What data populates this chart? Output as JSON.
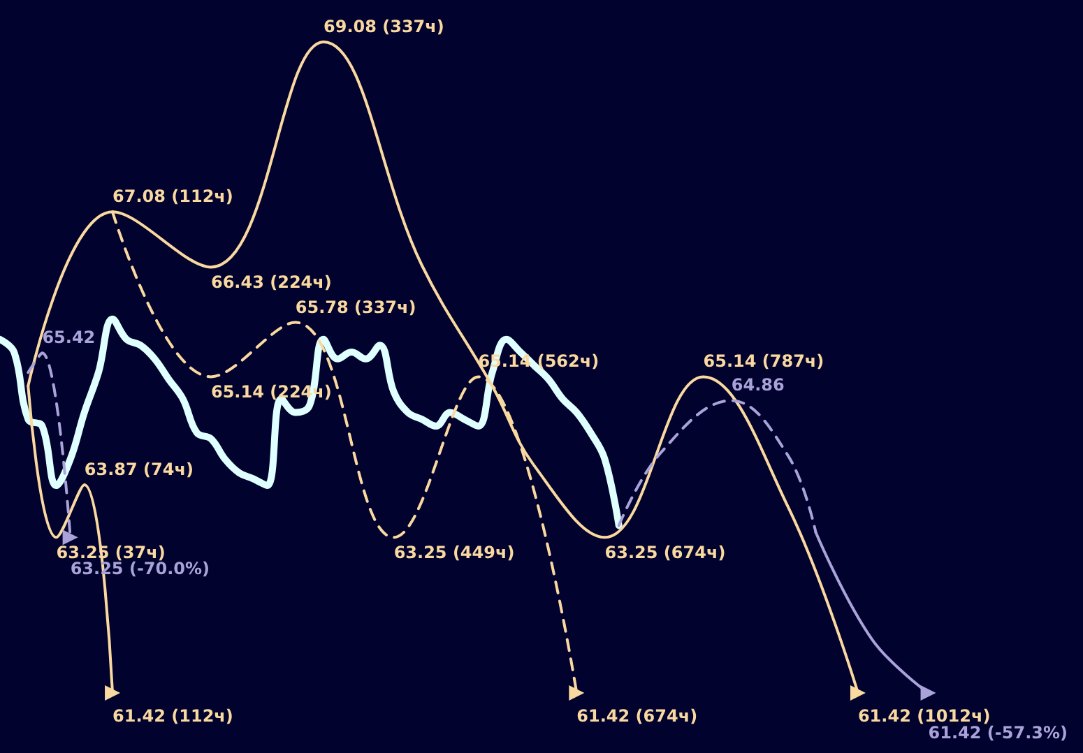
{
  "chart_data": {
    "type": "line",
    "tick_labels": false,
    "categories": [
      null,
      null,
      null,
      null,
      null,
      null,
      null,
      null,
      null,
      null,
      null,
      null,
      null,
      null,
      null,
      null,
      null,
      null,
      null,
      null,
      null,
      null,
      null,
      null,
      null,
      null,
      null,
      null,
      null,
      null,
      null,
      null,
      null,
      null,
      null,
      null,
      null,
      null,
      null,
      null,
      null,
      null,
      null,
      null,
      null,
      null,
      null,
      null,
      null,
      null,
      null,
      null,
      null,
      null,
      null,
      null,
      null,
      null,
      null,
      null,
      null,
      null,
      null,
      null,
      null,
      null,
      null,
      null,
      null,
      null,
      null,
      null,
      null,
      null,
      null,
      null,
      null,
      null
    ],
    "series": [
      {
        "color": "#e0ffff",
        "line_style": "solid",
        "values": [
          65.58,
          65.43,
          64.64,
          64.56,
          63.86,
          64.17,
          64.72,
          65.19,
          65.82,
          65.58,
          65.51,
          65.35,
          65.11,
          64.88,
          64.48,
          64.41,
          64.17,
          64.01,
          63.94,
          63.86,
          64.88,
          64.72,
          64.8,
          65.58,
          65.35,
          65.43,
          65.35,
          65.51,
          64.96,
          64.72,
          64.64,
          64.56,
          64.72,
          64.64,
          64.56,
          65.19,
          65.58,
          65.43,
          65.27,
          65.11,
          64.88,
          64.72,
          64.48,
          64.17,
          63.39,
          null,
          null,
          null,
          null,
          null,
          null,
          null,
          null,
          null,
          null,
          null,
          null,
          null,
          null,
          null,
          null,
          null,
          null,
          null,
          null,
          null,
          null,
          null,
          null,
          null,
          null,
          null,
          null,
          null,
          null,
          null,
          null,
          null
        ]
      },
      {
        "color": "#f9d9a0",
        "line_style": "solid",
        "values": [
          null,
          null,
          65.03,
          null,
          null,
          null,
          null,
          null,
          67.08,
          null,
          null,
          null,
          null,
          null,
          null,
          66.43,
          null,
          null,
          null,
          null,
          null,
          null,
          null,
          69.08,
          null,
          null,
          null,
          null,
          null,
          null,
          66.45,
          null,
          null,
          null,
          null,
          65.03,
          null,
          null,
          64.09,
          null,
          null,
          null,
          null,
          63.25,
          null,
          null,
          null,
          null,
          null,
          null,
          65.14,
          null,
          null,
          null,
          null,
          null,
          63.62,
          null,
          null,
          null,
          null,
          61.42,
          null,
          null,
          null,
          null,
          null,
          null,
          null,
          null,
          null,
          null,
          null,
          null,
          null,
          null,
          null,
          null
        ],
        "value_labels": [
          null,
          null,
          null,
          null,
          null,
          null,
          null,
          null,
          "67.08 (112ч)",
          null,
          null,
          null,
          null,
          null,
          null,
          "66.43 (224ч)",
          null,
          null,
          null,
          null,
          null,
          null,
          null,
          "69.08 (337ч)",
          null,
          null,
          null,
          null,
          null,
          null,
          null,
          null,
          null,
          null,
          null,
          null,
          null,
          null,
          null,
          null,
          null,
          null,
          null,
          "63.25 (674ч)",
          null,
          null,
          null,
          null,
          null,
          null,
          "65.14 (787ч)",
          null,
          null,
          null,
          null,
          null,
          null,
          null,
          null,
          null,
          null,
          "61.42 (1012ч)",
          null,
          null,
          null,
          null,
          null,
          null,
          null,
          null,
          null,
          null,
          null,
          null,
          null,
          null,
          null,
          null
        ]
      },
      {
        "color": "#f9d9a0",
        "line_style": "solid",
        "values": [
          null,
          null,
          65.03,
          null,
          63.25,
          null,
          63.87,
          null,
          61.42,
          null,
          null,
          null,
          null,
          null,
          null,
          null,
          null,
          null,
          null,
          null,
          null,
          null,
          null,
          null,
          null,
          null,
          null,
          null,
          null,
          null,
          null,
          null,
          null,
          null,
          null,
          null,
          null,
          null,
          null,
          null,
          null,
          null,
          null,
          null,
          null,
          null,
          null,
          null,
          null,
          null,
          null,
          null,
          null,
          null,
          null,
          null,
          null,
          null,
          null,
          null,
          null,
          null,
          null,
          null,
          null,
          null,
          null,
          null,
          null,
          null,
          null,
          null,
          null,
          null,
          null,
          null,
          null,
          null
        ],
        "value_labels": [
          null,
          null,
          null,
          null,
          "63.25 (37ч)",
          null,
          "63.87 (74ч)",
          null,
          "61.42 (112ч)",
          null,
          null,
          null,
          null,
          null,
          null,
          null,
          null,
          null,
          null,
          null,
          null,
          null,
          null,
          null,
          null,
          null,
          null,
          null,
          null,
          null,
          null,
          null,
          null,
          null,
          null,
          null,
          null,
          null,
          null,
          null,
          null,
          null,
          null,
          null,
          null,
          null,
          null,
          null,
          null,
          null,
          null,
          null,
          null,
          null,
          null,
          null,
          null,
          null,
          null,
          null,
          null,
          null,
          null,
          null,
          null,
          null,
          null,
          null,
          null,
          null,
          null,
          null,
          null,
          null,
          null,
          null,
          null,
          null
        ]
      },
      {
        "color": "#f9d9a0",
        "line_style": "dashed",
        "values": [
          null,
          null,
          null,
          null,
          null,
          null,
          null,
          null,
          67.08,
          null,
          null,
          null,
          null,
          null,
          null,
          65.14,
          null,
          null,
          null,
          null,
          null,
          65.78,
          null,
          null,
          null,
          null,
          null,
          null,
          63.25,
          null,
          null,
          null,
          null,
          null,
          65.14,
          null,
          null,
          null,
          null,
          null,
          null,
          61.42,
          null,
          null,
          null,
          null,
          null,
          null,
          null,
          null,
          null,
          null,
          null,
          null,
          null,
          null,
          null,
          null,
          null,
          null,
          null,
          null,
          null,
          null,
          null,
          null,
          null,
          null,
          null,
          null,
          null,
          null,
          null,
          null,
          null,
          null,
          null,
          null
        ],
        "value_labels": [
          null,
          null,
          null,
          null,
          null,
          null,
          null,
          null,
          null,
          null,
          null,
          null,
          null,
          null,
          null,
          "65.14 (224ч)",
          null,
          null,
          null,
          null,
          null,
          "65.78 (337ч)",
          null,
          null,
          null,
          null,
          null,
          null,
          "63.25 (449ч)",
          null,
          null,
          null,
          null,
          null,
          "65.14 (562ч)",
          null,
          null,
          null,
          null,
          null,
          null,
          "61.42 (674ч)",
          null,
          null,
          null,
          null,
          null,
          null,
          null,
          null,
          null,
          null,
          null,
          null,
          null,
          null,
          null,
          null,
          null,
          null,
          null,
          null,
          null,
          null,
          null,
          null,
          null,
          null,
          null,
          null,
          null,
          null,
          null,
          null,
          null,
          null,
          null,
          null
        ]
      },
      {
        "color": "#a9a3d9",
        "line_style": "dashed",
        "values": [
          null,
          null,
          65.19,
          65.42,
          null,
          63.25,
          null,
          null,
          null,
          null,
          null,
          null,
          null,
          null,
          null,
          null,
          null,
          null,
          null,
          null,
          null,
          null,
          null,
          null,
          null,
          null,
          null,
          null,
          null,
          null,
          null,
          null,
          null,
          null,
          null,
          null,
          null,
          null,
          null,
          null,
          null,
          null,
          null,
          null,
          null,
          null,
          null,
          null,
          null,
          null,
          null,
          null,
          null,
          null,
          null,
          null,
          null,
          null,
          null,
          null,
          null,
          null,
          null,
          null,
          null,
          null,
          null,
          null,
          null,
          null,
          null,
          null,
          null,
          null,
          null,
          null,
          null,
          null
        ],
        "value_labels": [
          null,
          null,
          null,
          "65.42",
          null,
          "63.25 (-70.0%)",
          null,
          null,
          null,
          null,
          null,
          null,
          null,
          null,
          null,
          null,
          null,
          null,
          null,
          null,
          null,
          null,
          null,
          null,
          null,
          null,
          null,
          null,
          null,
          null,
          null,
          null,
          null,
          null,
          null,
          null,
          null,
          null,
          null,
          null,
          null,
          null,
          null,
          null,
          null,
          null,
          null,
          null,
          null,
          null,
          null,
          null,
          null,
          null,
          null,
          null,
          null,
          null,
          null,
          null,
          null,
          null,
          null,
          null,
          null,
          null,
          null,
          null,
          null,
          null,
          null,
          null,
          null,
          null,
          null,
          null,
          null,
          null
        ]
      },
      {
        "color": "#a9a3d9",
        "line_style": "dashed",
        "values": [
          null,
          null,
          null,
          null,
          null,
          null,
          null,
          null,
          null,
          null,
          null,
          null,
          null,
          null,
          null,
          null,
          null,
          null,
          null,
          null,
          null,
          null,
          null,
          null,
          null,
          null,
          null,
          null,
          null,
          null,
          null,
          null,
          null,
          null,
          null,
          null,
          null,
          null,
          null,
          null,
          null,
          null,
          null,
          null,
          63.39,
          null,
          null,
          64.25,
          null,
          null,
          null,
          null,
          64.86,
          null,
          null,
          null,
          64.22,
          null,
          63.31,
          null,
          null,
          null,
          null,
          null,
          null,
          null,
          null,
          null,
          null,
          null,
          null,
          null,
          null,
          null,
          null,
          null,
          null,
          null
        ],
        "value_labels": [
          null,
          null,
          null,
          null,
          null,
          null,
          null,
          null,
          null,
          null,
          null,
          null,
          null,
          null,
          null,
          null,
          null,
          null,
          null,
          null,
          null,
          null,
          null,
          null,
          null,
          null,
          null,
          null,
          null,
          null,
          null,
          null,
          null,
          null,
          null,
          null,
          null,
          null,
          null,
          null,
          null,
          null,
          null,
          null,
          null,
          null,
          null,
          null,
          null,
          null,
          null,
          null,
          "64.86",
          null,
          null,
          null,
          null,
          null,
          null,
          null,
          null,
          null,
          null,
          null,
          null,
          null,
          null,
          null,
          null,
          null,
          null,
          null,
          null,
          null,
          null,
          null,
          null,
          null
        ]
      },
      {
        "color": "#a9a3d9",
        "line_style": "solid",
        "values": [
          null,
          null,
          null,
          null,
          null,
          null,
          null,
          null,
          null,
          null,
          null,
          null,
          null,
          null,
          null,
          null,
          null,
          null,
          null,
          null,
          null,
          null,
          null,
          null,
          null,
          null,
          null,
          null,
          null,
          null,
          null,
          null,
          null,
          null,
          null,
          null,
          null,
          null,
          null,
          null,
          null,
          null,
          null,
          null,
          null,
          null,
          null,
          null,
          null,
          null,
          null,
          null,
          null,
          null,
          null,
          null,
          null,
          null,
          63.31,
          null,
          null,
          null,
          62.05,
          null,
          null,
          null,
          61.42,
          null,
          null,
          null,
          null,
          null,
          null,
          null,
          null,
          null,
          null,
          null
        ],
        "value_labels": [
          null,
          null,
          null,
          null,
          null,
          null,
          null,
          null,
          null,
          null,
          null,
          null,
          null,
          null,
          null,
          null,
          null,
          null,
          null,
          null,
          null,
          null,
          null,
          null,
          null,
          null,
          null,
          null,
          null,
          null,
          null,
          null,
          null,
          null,
          null,
          null,
          null,
          null,
          null,
          null,
          null,
          null,
          null,
          null,
          null,
          null,
          null,
          null,
          null,
          null,
          null,
          null,
          null,
          null,
          null,
          null,
          null,
          null,
          null,
          null,
          null,
          null,
          null,
          null,
          null,
          null,
          "61.42 (-57.3%)",
          null,
          null,
          null,
          null,
          null,
          null,
          null,
          null,
          null,
          null,
          null
        ]
      }
    ]
  }
}
